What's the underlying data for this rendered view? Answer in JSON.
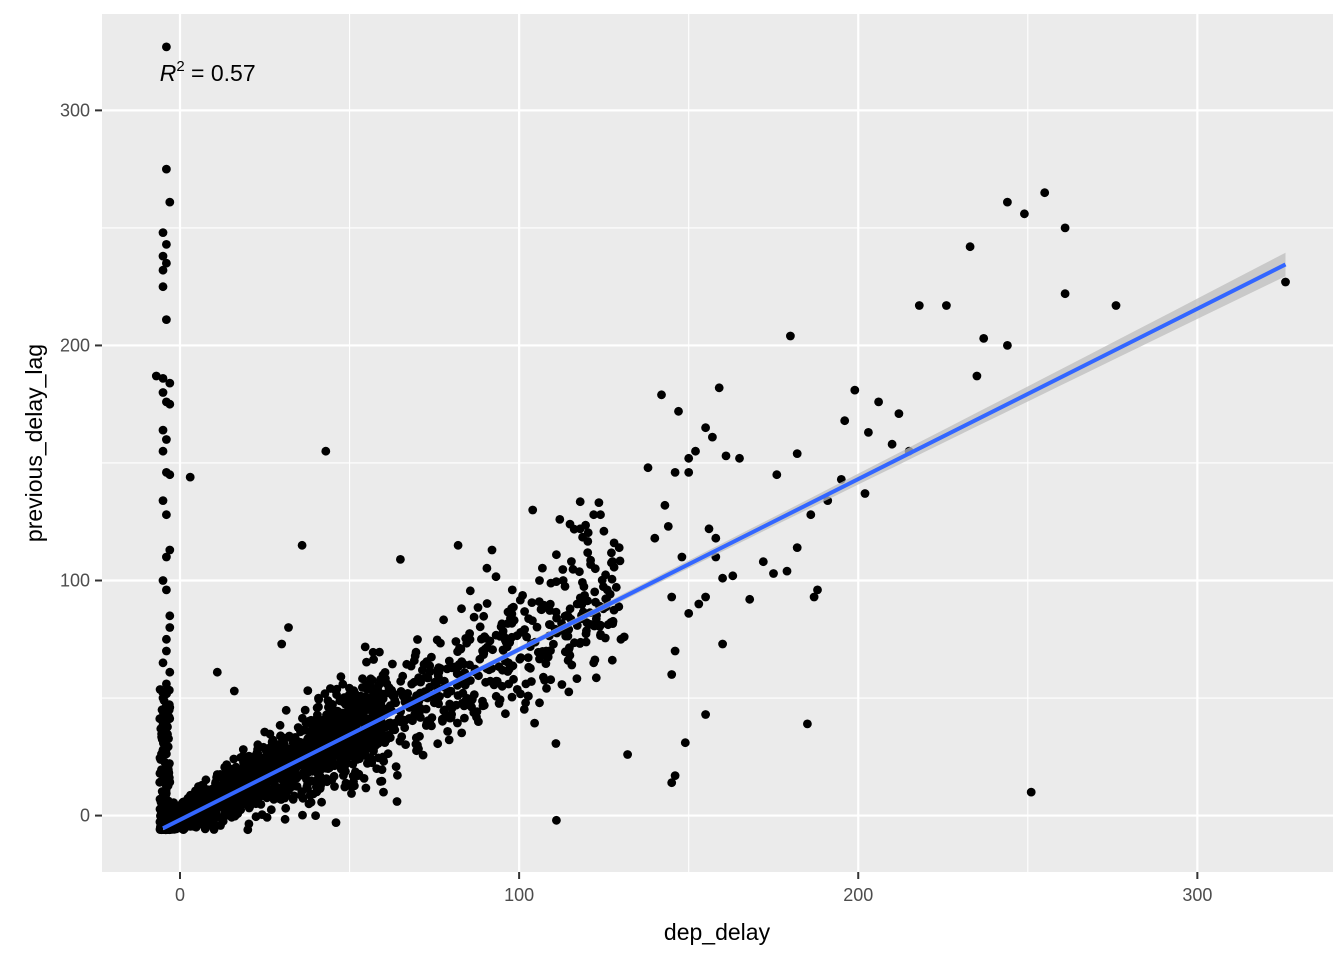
{
  "chart_data": {
    "type": "scatter",
    "title": "",
    "xlabel": "dep_delay",
    "ylabel": "previous_delay_lag",
    "xlim": [
      -23,
      340
    ],
    "ylim": [
      -24,
      341
    ],
    "x_ticks": [
      0,
      100,
      200,
      300
    ],
    "y_ticks": [
      0,
      100,
      200,
      300
    ],
    "x_minor_ticks": [
      50,
      150,
      250
    ],
    "y_minor_ticks": [
      50,
      150,
      250
    ],
    "grid": true,
    "colors": {
      "panel": "#ebebeb",
      "grid": "#ffffff",
      "points": "#000000",
      "fit_line": "#3366ff",
      "confidence_band": "#bdbdbd"
    },
    "annotation": {
      "r2_symbol": "R",
      "r2_exponent": "2",
      "r2_text": " = 0.57",
      "x": -6,
      "y": 316
    },
    "fit_line": {
      "intercept": -1.8,
      "slope": 0.7247,
      "x_range": [
        -5,
        326
      ],
      "band_halfwidth": [
        0.8,
        5
      ]
    },
    "cluster": {
      "n": 1700,
      "x_range": [
        -5,
        60
      ],
      "slope": 0.72,
      "intercept": -1
    },
    "points": [
      [
        -4,
        327
      ],
      [
        -4,
        275
      ],
      [
        -3,
        261
      ],
      [
        -5,
        248
      ],
      [
        -4,
        243
      ],
      [
        -5,
        238
      ],
      [
        -4,
        235
      ],
      [
        -5,
        232
      ],
      [
        -5,
        225
      ],
      [
        -4,
        211
      ],
      [
        -7,
        187
      ],
      [
        -5,
        186
      ],
      [
        -3,
        184
      ],
      [
        -5,
        180
      ],
      [
        -4,
        176
      ],
      [
        -3,
        175
      ],
      [
        -5,
        164
      ],
      [
        -4,
        160
      ],
      [
        -5,
        155
      ],
      [
        -4,
        146
      ],
      [
        -3,
        145
      ],
      [
        -5,
        134
      ],
      [
        -4,
        128
      ],
      [
        -3,
        113
      ],
      [
        -4,
        110
      ],
      [
        -5,
        100
      ],
      [
        -4,
        96
      ],
      [
        -3,
        85
      ],
      [
        -3,
        80
      ],
      [
        -4,
        75
      ],
      [
        -4,
        70
      ],
      [
        -5,
        65
      ],
      [
        -3,
        61
      ],
      [
        -4,
        56
      ],
      [
        -5,
        50
      ],
      [
        -3,
        46
      ],
      [
        -4,
        40
      ],
      [
        -5,
        35
      ],
      [
        3,
        144
      ],
      [
        43,
        155
      ],
      [
        36,
        115
      ],
      [
        11,
        61
      ],
      [
        16,
        53
      ],
      [
        32,
        80
      ],
      [
        30,
        73
      ],
      [
        65,
        109
      ],
      [
        82,
        115
      ],
      [
        83,
        88
      ],
      [
        92,
        113
      ],
      [
        98,
        96
      ],
      [
        104,
        130
      ],
      [
        111,
        111
      ],
      [
        112,
        126
      ],
      [
        113,
        100
      ],
      [
        115,
        124
      ],
      [
        118,
        122
      ],
      [
        122,
        128
      ],
      [
        124,
        128
      ],
      [
        125,
        121
      ],
      [
        128,
        116
      ],
      [
        126,
        96
      ],
      [
        124,
        81
      ],
      [
        130,
        75
      ],
      [
        131,
        76
      ],
      [
        132,
        26
      ],
      [
        111,
        -2
      ],
      [
        106,
        48
      ],
      [
        102,
        56
      ],
      [
        108,
        70
      ],
      [
        106,
        100
      ],
      [
        138,
        148
      ],
      [
        142,
        179
      ],
      [
        144,
        123
      ],
      [
        147,
        172
      ],
      [
        146,
        146
      ],
      [
        150,
        152
      ],
      [
        150,
        146
      ],
      [
        152,
        155
      ],
      [
        155,
        165
      ],
      [
        157,
        161
      ],
      [
        161,
        153
      ],
      [
        159,
        182
      ],
      [
        156,
        122
      ],
      [
        158,
        118
      ],
      [
        158,
        110
      ],
      [
        160,
        101
      ],
      [
        155,
        93
      ],
      [
        153,
        90
      ],
      [
        160,
        73
      ],
      [
        145,
        93
      ],
      [
        143,
        132
      ],
      [
        148,
        110
      ],
      [
        145,
        60
      ],
      [
        146,
        70
      ],
      [
        150,
        86
      ],
      [
        155,
        43
      ],
      [
        149,
        31
      ],
      [
        146,
        17
      ],
      [
        145,
        14
      ],
      [
        165,
        152
      ],
      [
        176,
        145
      ],
      [
        180,
        204
      ],
      [
        182,
        154
      ],
      [
        186,
        128
      ],
      [
        182,
        114
      ],
      [
        179,
        104
      ],
      [
        175,
        103
      ],
      [
        168,
        92
      ],
      [
        172,
        108
      ],
      [
        163,
        102
      ],
      [
        191,
        134
      ],
      [
        195,
        143
      ],
      [
        196,
        168
      ],
      [
        199,
        181
      ],
      [
        203,
        163
      ],
      [
        202,
        137
      ],
      [
        206,
        176
      ],
      [
        210,
        158
      ],
      [
        212,
        171
      ],
      [
        215,
        155
      ],
      [
        218,
        217
      ],
      [
        226,
        217
      ],
      [
        233,
        242
      ],
      [
        235,
        187
      ],
      [
        237,
        203
      ],
      [
        244,
        200
      ],
      [
        244,
        261
      ],
      [
        249,
        256
      ],
      [
        255,
        265
      ],
      [
        261,
        250
      ],
      [
        261,
        222
      ],
      [
        276,
        217
      ],
      [
        326,
        227
      ],
      [
        188,
        96
      ],
      [
        187,
        93
      ],
      [
        185,
        39
      ],
      [
        251,
        10
      ],
      [
        120,
        82
      ],
      [
        122,
        65
      ],
      [
        140,
        118
      ],
      [
        95,
        55
      ],
      [
        88,
        40
      ],
      [
        70,
        30
      ],
      [
        75,
        48
      ],
      [
        58,
        20
      ],
      [
        46,
        -3
      ],
      [
        40,
        0
      ],
      [
        38,
        5
      ],
      [
        60,
        10
      ],
      [
        64,
        6
      ]
    ]
  }
}
